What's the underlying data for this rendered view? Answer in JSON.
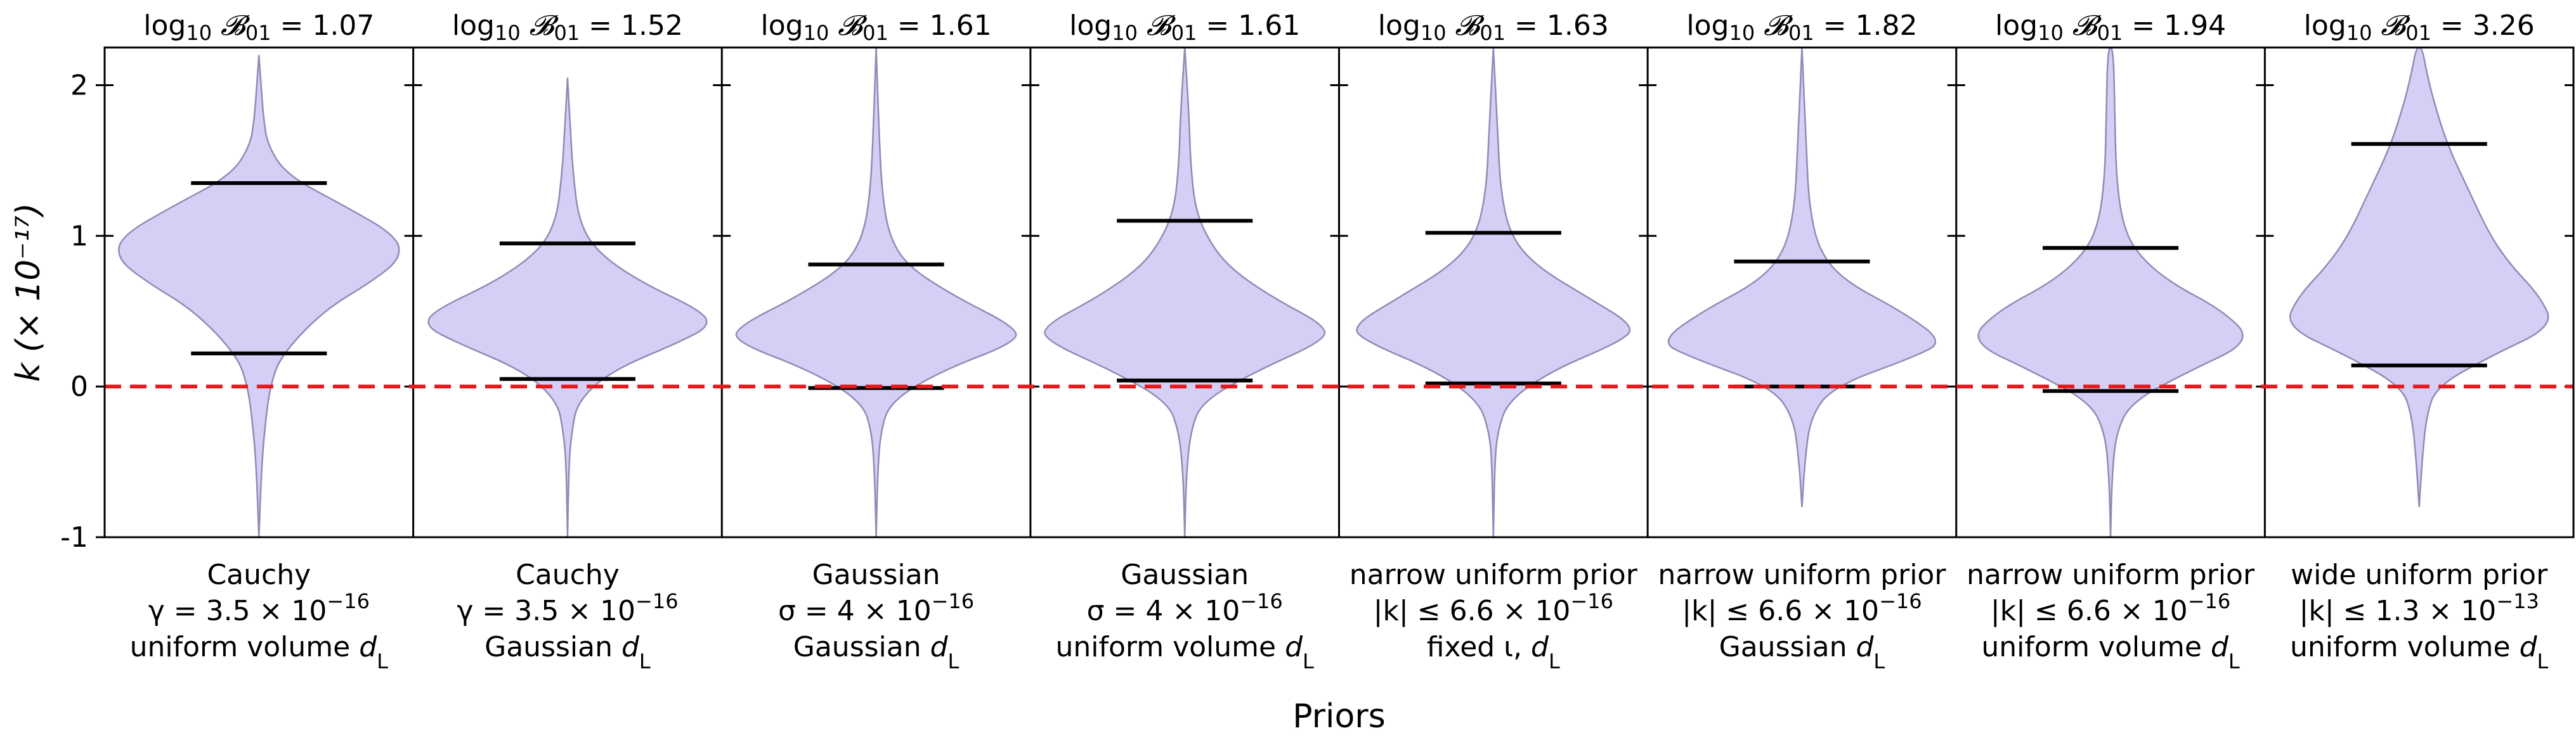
{
  "chart_data": {
    "type": "violin",
    "ylabel": "k  (× 10⁻¹⁷)",
    "xlabel": "Priors",
    "ylim": [
      -1,
      2.25
    ],
    "yticks": [
      -1,
      0,
      1,
      2
    ],
    "ytick_labels": [
      "-1",
      "0",
      "1",
      "2"
    ],
    "reference_line": 0,
    "colors": {
      "violin_fill": "#d5cff6",
      "violin_edge": "#8f8bb6",
      "reference": "#e41a1c",
      "quantile": "#000000"
    },
    "panels": [
      {
        "title_prefix": "log",
        "title_sub": "10",
        "title_calB": "𝓑",
        "title_calB_sub": "01",
        "title_value": "= 1.07",
        "label_lines": [
          {
            "a": "Cauchy"
          },
          {
            "a": "γ = 3.5 × 10",
            "sup": "−16"
          },
          {
            "a": "uniform volume ",
            "i": "d",
            "sub": "L"
          }
        ],
        "lower": 0.22,
        "upper": 1.35,
        "profile": [
          [
            -1.0,
            0.0
          ],
          [
            -0.5,
            0.02
          ],
          [
            -0.2,
            0.05
          ],
          [
            0.0,
            0.08
          ],
          [
            0.2,
            0.15
          ],
          [
            0.5,
            0.45
          ],
          [
            0.7,
            0.8
          ],
          [
            0.85,
            1.0
          ],
          [
            1.0,
            0.97
          ],
          [
            1.2,
            0.6
          ],
          [
            1.4,
            0.2
          ],
          [
            1.6,
            0.06
          ],
          [
            1.8,
            0.03
          ],
          [
            2.0,
            0.015
          ],
          [
            2.2,
            0.0
          ]
        ]
      },
      {
        "title_prefix": "log",
        "title_sub": "10",
        "title_calB": "𝓑",
        "title_calB_sub": "01",
        "title_value": "= 1.52",
        "label_lines": [
          {
            "a": "Cauchy"
          },
          {
            "a": "γ = 3.5 × 10",
            "sup": "−16"
          },
          {
            "a": "Gaussian ",
            "i": "d",
            "sub": "L"
          }
        ],
        "lower": 0.05,
        "upper": 0.95,
        "profile": [
          [
            -1.0,
            0.0
          ],
          [
            -0.5,
            0.01
          ],
          [
            -0.3,
            0.03
          ],
          [
            -0.1,
            0.07
          ],
          [
            0.1,
            0.3
          ],
          [
            0.3,
            0.8
          ],
          [
            0.4,
            1.0
          ],
          [
            0.5,
            0.95
          ],
          [
            0.7,
            0.5
          ],
          [
            0.9,
            0.2
          ],
          [
            1.1,
            0.08
          ],
          [
            1.4,
            0.04
          ],
          [
            1.7,
            0.02
          ],
          [
            2.05,
            0.0
          ]
        ]
      },
      {
        "title_prefix": "log",
        "title_sub": "10",
        "title_calB": "𝓑",
        "title_calB_sub": "01",
        "title_value": "= 1.61",
        "label_lines": [
          {
            "a": "Gaussian"
          },
          {
            "a": "σ = 4 × 10",
            "sup": "−16"
          },
          {
            "a": "Gaussian ",
            "i": "d",
            "sub": "L"
          }
        ],
        "lower": -0.01,
        "upper": 0.81,
        "profile": [
          [
            -1.0,
            0.0
          ],
          [
            -0.6,
            0.01
          ],
          [
            -0.3,
            0.03
          ],
          [
            -0.1,
            0.1
          ],
          [
            0.1,
            0.45
          ],
          [
            0.3,
            1.0
          ],
          [
            0.4,
            0.97
          ],
          [
            0.6,
            0.55
          ],
          [
            0.8,
            0.22
          ],
          [
            1.0,
            0.09
          ],
          [
            1.3,
            0.04
          ],
          [
            1.7,
            0.02
          ],
          [
            2.25,
            0.0
          ]
        ]
      },
      {
        "title_prefix": "log",
        "title_sub": "10",
        "title_calB": "𝓑",
        "title_calB_sub": "01",
        "title_value": "= 1.61",
        "label_lines": [
          {
            "a": "Gaussian"
          },
          {
            "a": "σ = 4 × 10",
            "sup": "−16"
          },
          {
            "a": "uniform volume ",
            "i": "d",
            "sub": "L"
          }
        ],
        "lower": 0.04,
        "upper": 1.1,
        "profile": [
          [
            -1.0,
            0.0
          ],
          [
            -0.6,
            0.01
          ],
          [
            -0.3,
            0.04
          ],
          [
            -0.1,
            0.12
          ],
          [
            0.1,
            0.5
          ],
          [
            0.3,
            0.97
          ],
          [
            0.4,
            1.0
          ],
          [
            0.6,
            0.6
          ],
          [
            0.8,
            0.3
          ],
          [
            1.0,
            0.15
          ],
          [
            1.2,
            0.07
          ],
          [
            1.5,
            0.04
          ],
          [
            1.8,
            0.03
          ],
          [
            2.25,
            0.0
          ]
        ]
      },
      {
        "title_prefix": "log",
        "title_sub": "10",
        "title_calB": "𝓑",
        "title_calB_sub": "01",
        "title_value": "= 1.63",
        "label_lines": [
          {
            "a": "narrow uniform prior"
          },
          {
            "a": "|k| ≤ 6.6 × 10",
            "sup": "−16"
          },
          {
            "a": "fixed ι,  ",
            "i": "d",
            "sub": "L"
          }
        ],
        "lower": 0.02,
        "upper": 1.02,
        "profile": [
          [
            -1.0,
            0.0
          ],
          [
            -0.5,
            0.01
          ],
          [
            -0.3,
            0.03
          ],
          [
            -0.1,
            0.1
          ],
          [
            0.1,
            0.4
          ],
          [
            0.3,
            0.9
          ],
          [
            0.4,
            1.0
          ],
          [
            0.6,
            0.65
          ],
          [
            0.8,
            0.3
          ],
          [
            1.0,
            0.12
          ],
          [
            1.3,
            0.05
          ],
          [
            1.7,
            0.03
          ],
          [
            2.25,
            0.0
          ]
        ]
      },
      {
        "title_prefix": "log",
        "title_sub": "10",
        "title_calB": "𝓑",
        "title_calB_sub": "01",
        "title_value": "= 1.82",
        "label_lines": [
          {
            "a": "narrow uniform prior"
          },
          {
            "a": "|k| ≤ 6.6 × 10",
            "sup": "−16"
          },
          {
            "a": "Gaussian ",
            "i": "d",
            "sub": "L"
          }
        ],
        "lower": 0.0,
        "upper": 0.83,
        "profile": [
          [
            -0.8,
            0.0
          ],
          [
            -0.5,
            0.02
          ],
          [
            -0.2,
            0.06
          ],
          [
            0.0,
            0.22
          ],
          [
            0.2,
            0.8
          ],
          [
            0.3,
            1.0
          ],
          [
            0.5,
            0.7
          ],
          [
            0.7,
            0.3
          ],
          [
            0.9,
            0.12
          ],
          [
            1.2,
            0.05
          ],
          [
            1.6,
            0.03
          ],
          [
            2.25,
            0.0
          ]
        ]
      },
      {
        "title_prefix": "log",
        "title_sub": "10",
        "title_calB": "𝓑",
        "title_calB_sub": "01",
        "title_value": "= 1.94",
        "label_lines": [
          {
            "a": "narrow uniform prior"
          },
          {
            "a": "|k| ≤ 6.6 × 10",
            "sup": "−16"
          },
          {
            "a": "uniform volume ",
            "i": "d",
            "sub": "L"
          }
        ],
        "lower": -0.03,
        "upper": 0.92,
        "profile": [
          [
            -1.0,
            0.0
          ],
          [
            -0.6,
            0.01
          ],
          [
            -0.3,
            0.04
          ],
          [
            -0.1,
            0.15
          ],
          [
            0.1,
            0.55
          ],
          [
            0.3,
            1.0
          ],
          [
            0.5,
            0.8
          ],
          [
            0.7,
            0.4
          ],
          [
            0.9,
            0.17
          ],
          [
            1.1,
            0.08
          ],
          [
            1.4,
            0.04
          ],
          [
            1.8,
            0.03
          ],
          [
            2.25,
            0.02
          ]
        ]
      },
      {
        "title_prefix": "log",
        "title_sub": "10",
        "title_calB": "𝓑",
        "title_calB_sub": "01",
        "title_value": "= 3.26",
        "label_lines": [
          {
            "a": "wide uniform prior"
          },
          {
            "a": "|k| ≤ 1.3 × 10",
            "sup": "−13"
          },
          {
            "a": "uniform volume ",
            "i": "d",
            "sub": "L"
          }
        ],
        "lower": 0.14,
        "upper": 1.61,
        "profile": [
          [
            -0.8,
            0.0
          ],
          [
            -0.5,
            0.02
          ],
          [
            -0.2,
            0.05
          ],
          [
            0.0,
            0.12
          ],
          [
            0.2,
            0.5
          ],
          [
            0.4,
            0.95
          ],
          [
            0.6,
            0.85
          ],
          [
            0.8,
            0.65
          ],
          [
            1.0,
            0.5
          ],
          [
            1.3,
            0.35
          ],
          [
            1.6,
            0.2
          ],
          [
            1.9,
            0.1
          ],
          [
            2.1,
            0.05
          ],
          [
            2.25,
            0.02
          ]
        ]
      }
    ]
  }
}
